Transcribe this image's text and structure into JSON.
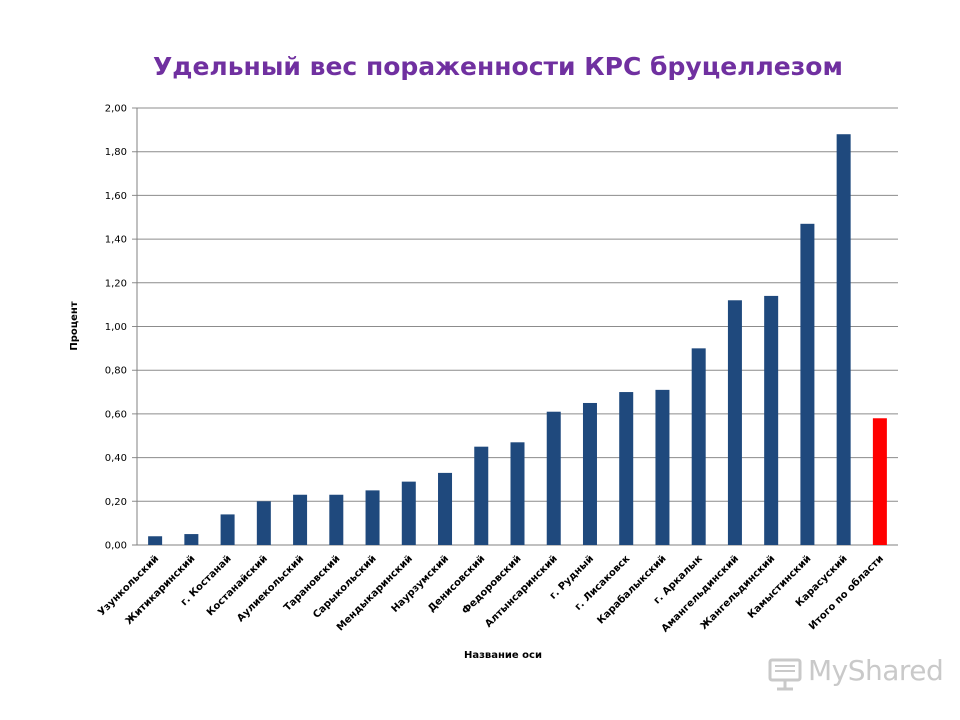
{
  "chart_data": {
    "type": "bar",
    "title": "Удельный вес пораженности КРС бруцеллезом",
    "xlabel": "Название оси",
    "ylabel": "Процент",
    "ylim": [
      0,
      2.0
    ],
    "y_ticks": [
      "0,00",
      "0,20",
      "0,40",
      "0,60",
      "0,80",
      "1,00",
      "1,20",
      "1,40",
      "1,60",
      "1,80",
      "2,00"
    ],
    "grid": true,
    "bar_color": "#1f497d",
    "highlight_color": "#ff0000",
    "categories": [
      "Узункольский",
      "Житикаринский",
      "г. Костанай",
      "Костанайский",
      "Аулиекольский",
      "Тарановский",
      "Сарыкольский",
      "Мендыкаринский",
      "Наурзумский",
      "Денисовский",
      "Федоровский",
      "Алтынсаринский",
      "г. Рудный",
      "г. Лисаковск",
      "Карабалыкский",
      "г. Аркалык",
      "Амангельдинский",
      "Жангельдинский",
      "Камыстинский",
      "Карасуский",
      "Итого по области"
    ],
    "values": [
      0.04,
      0.05,
      0.14,
      0.2,
      0.23,
      0.23,
      0.25,
      0.29,
      0.33,
      0.45,
      0.47,
      0.61,
      0.65,
      0.7,
      0.71,
      0.9,
      1.12,
      1.14,
      1.47,
      1.88,
      0.58
    ],
    "highlight_index": 20
  },
  "watermark": {
    "text": "MyShared",
    "icon": "projector-screen-icon"
  }
}
